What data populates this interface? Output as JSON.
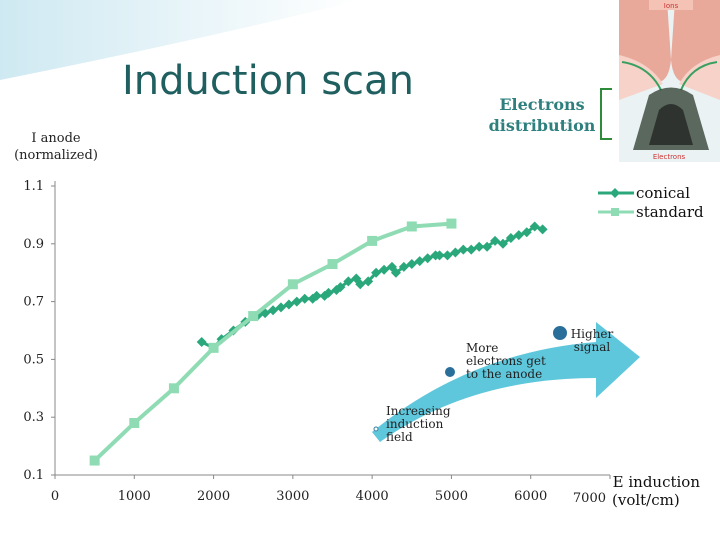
{
  "slide": {
    "title": "Induction scan",
    "electrons_label": "Electrons distribution"
  },
  "inset": {
    "top_label": "Ions",
    "bottom_label": "Electrons"
  },
  "colors": {
    "conical": "#2aa87c",
    "standard": "#8fdcb4",
    "arrow": "#4ec1d8",
    "title": "#1f5f5f"
  },
  "annotations": {
    "increasing": [
      "Increasing",
      "induction",
      "field"
    ],
    "more_electrons": [
      "More",
      "electrons get",
      "to the anode"
    ],
    "higher_signal": [
      "Higher",
      "signal"
    ]
  },
  "chart_data": {
    "type": "line",
    "ylabel": [
      "I anode",
      "(normalized)"
    ],
    "xlabel": [
      "E induction",
      "(volt/cm)"
    ],
    "xlim": [
      0,
      7000
    ],
    "ylim": [
      0.1,
      1.1
    ],
    "xticks": [
      "0",
      "1000",
      "2000",
      "3000",
      "4000",
      "5000",
      "6000",
      "7000"
    ],
    "yticks": [
      "0.1",
      "0.3",
      "0.5",
      "0.7",
      "0.9",
      "1.1"
    ],
    "grid": false,
    "legend_position": "top-right",
    "series": [
      {
        "name": "conical",
        "marker": "diamond",
        "x": [
          1850,
          2000,
          2100,
          2250,
          2400,
          2550,
          2650,
          2750,
          2850,
          2950,
          3050,
          3150,
          3250,
          3300,
          3400,
          3450,
          3550,
          3600,
          3700,
          3800,
          3850,
          3950,
          4050,
          4150,
          4250,
          4300,
          4400,
          4500,
          4600,
          4700,
          4800,
          4850,
          4950,
          5050,
          5150,
          5250,
          5350,
          5450,
          5550,
          5650,
          5750,
          5850,
          5950,
          6050,
          6150
        ],
        "y": [
          0.56,
          0.54,
          0.57,
          0.6,
          0.63,
          0.65,
          0.66,
          0.67,
          0.68,
          0.69,
          0.7,
          0.71,
          0.71,
          0.72,
          0.72,
          0.73,
          0.74,
          0.75,
          0.77,
          0.78,
          0.76,
          0.77,
          0.8,
          0.81,
          0.82,
          0.8,
          0.82,
          0.83,
          0.84,
          0.85,
          0.86,
          0.86,
          0.86,
          0.87,
          0.88,
          0.88,
          0.89,
          0.89,
          0.91,
          0.9,
          0.92,
          0.93,
          0.94,
          0.96,
          0.95
        ]
      },
      {
        "name": "standard",
        "marker": "square",
        "x": [
          500,
          1000,
          1500,
          2000,
          2500,
          3000,
          3500,
          4000,
          4500,
          5000
        ],
        "y": [
          0.15,
          0.28,
          0.4,
          0.54,
          0.65,
          0.76,
          0.83,
          0.91,
          0.96,
          0.97
        ]
      }
    ]
  }
}
